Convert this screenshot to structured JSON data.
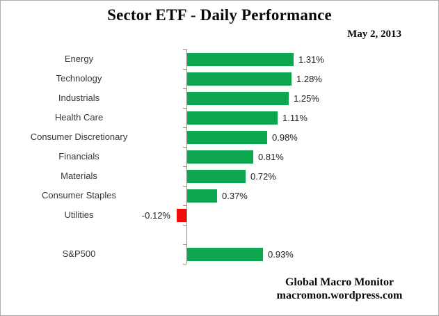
{
  "title": "Sector ETF - Daily Performance",
  "date_label": "May 2, 2013",
  "footer": {
    "line1": "Global Macro Monitor",
    "line2": "macromon.wordpress.com"
  },
  "colors": {
    "positive_bar": "#0DA750",
    "negative_bar": "#F20D0D",
    "axis": "#8C8C8C"
  },
  "chart_data": {
    "type": "bar",
    "orientation": "horizontal",
    "title": "Sector ETF - Daily Performance",
    "subtitle": "May 2, 2013",
    "categories": [
      "Energy",
      "Technology",
      "Industrials",
      "Health Care",
      "Consumer Discretionary",
      "Financials",
      "Materials",
      "Consumer Staples",
      "Utilities",
      "",
      "S&P500"
    ],
    "values": [
      1.31,
      1.28,
      1.25,
      1.11,
      0.98,
      0.81,
      0.72,
      0.37,
      -0.12,
      null,
      0.93
    ],
    "value_labels": [
      "1.31%",
      "1.28%",
      "1.25%",
      "1.11%",
      "0.98%",
      "0.81%",
      "0.72%",
      "0.37%",
      "-0.12%",
      "",
      "0.93%"
    ],
    "xlim": [
      -0.5,
      3.1
    ],
    "grid": false,
    "legend": false,
    "value_unit": "%"
  }
}
